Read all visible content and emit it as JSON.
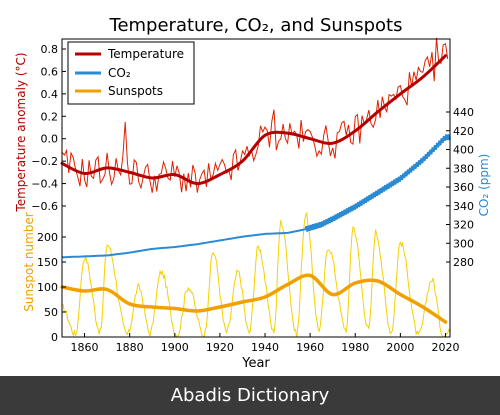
{
  "chart_data": {
    "type": "line",
    "title": "Temperature, CO₂, and Sunspots",
    "xlabel": "Year",
    "xlim": [
      1850,
      2022
    ],
    "x_ticks": [
      1860,
      1880,
      1900,
      1920,
      1940,
      1960,
      1980,
      2000,
      2020
    ],
    "grid": false,
    "legend_position": "top-left",
    "axes": {
      "temperature": {
        "label": "Temperature anomaly (°C)",
        "color": "#b40000",
        "ticks": [
          -0.6,
          -0.4,
          -0.2,
          0.0,
          0.2,
          0.4,
          0.6,
          0.8
        ],
        "tick_labels": [
          "−0.6",
          "−0.4",
          "−0.2",
          "0.0",
          "0.2",
          "0.4",
          "0.6",
          "0.8"
        ],
        "side": "left"
      },
      "co2": {
        "label": "CO₂ (ppm)",
        "color": "#2a8ad4",
        "ticks": [
          280,
          300,
          320,
          340,
          360,
          380,
          400,
          420,
          440
        ],
        "tick_labels": [
          "280",
          "300",
          "320",
          "340",
          "360",
          "380",
          "400",
          "420",
          "440"
        ],
        "side": "right"
      },
      "sunspots": {
        "label": "Sunspot number",
        "color": "#f0a000",
        "ticks": [
          0,
          50,
          100,
          150,
          200
        ],
        "tick_labels": [
          "0",
          "50",
          "100",
          "150",
          "200"
        ],
        "side": "left"
      }
    },
    "series": [
      {
        "name": "Temperature",
        "axis": "temperature",
        "color": "#b40000",
        "smoothed": {
          "x": [
            1850,
            1860,
            1870,
            1880,
            1890,
            1900,
            1910,
            1920,
            1930,
            1940,
            1950,
            1960,
            1970,
            1980,
            1990,
            2000,
            2010,
            2020
          ],
          "y": [
            -0.22,
            -0.31,
            -0.26,
            -0.3,
            -0.35,
            -0.32,
            -0.4,
            -0.32,
            -0.2,
            0.03,
            0.05,
            0.0,
            -0.04,
            0.07,
            0.24,
            0.4,
            0.55,
            0.74
          ]
        },
        "annual_range": [
          -0.58,
          0.9
        ]
      },
      {
        "name": "CO₂",
        "axis": "co2",
        "color": "#2a8ad4",
        "x": [
          1850,
          1870,
          1880,
          1890,
          1900,
          1910,
          1920,
          1930,
          1940,
          1950,
          1958,
          1965,
          1970,
          1980,
          1990,
          2000,
          2010,
          2020
        ],
        "y": [
          285,
          287,
          290,
          294,
          296,
          299,
          303,
          307,
          310,
          311,
          315,
          320,
          326,
          339,
          354,
          369,
          389,
          413
        ]
      },
      {
        "name": "Sunspots",
        "axis": "sunspots",
        "color": "#f0a000",
        "smoothed": {
          "x": [
            1850,
            1860,
            1870,
            1880,
            1890,
            1900,
            1910,
            1920,
            1930,
            1940,
            1950,
            1960,
            1970,
            1980,
            1990,
            2000,
            2010,
            2020
          ],
          "y": [
            100,
            92,
            95,
            66,
            60,
            57,
            52,
            60,
            70,
            80,
            105,
            123,
            85,
            108,
            112,
            85,
            60,
            30
          ]
        },
        "cycle_peaks": {
          "x": [
            1860,
            1870,
            1884,
            1894,
            1906,
            1917,
            1928,
            1937,
            1947,
            1958,
            1968,
            1979,
            1989,
            2000,
            2014
          ],
          "y": [
            160,
            185,
            100,
            130,
            100,
            170,
            130,
            180,
            230,
            245,
            180,
            220,
            210,
            190,
            115
          ]
        },
        "cycle_minima": {
          "x": [
            1856,
            1867,
            1879,
            1889,
            1901,
            1913,
            1923,
            1933,
            1944,
            1954,
            1964,
            1976,
            1986,
            1996,
            2008,
            2019
          ],
          "y": [
            5,
            10,
            5,
            8,
            3,
            3,
            10,
            8,
            12,
            5,
            15,
            15,
            15,
            10,
            3,
            3
          ]
        }
      }
    ]
  },
  "footer": {
    "text": "Abadis Dictionary"
  }
}
